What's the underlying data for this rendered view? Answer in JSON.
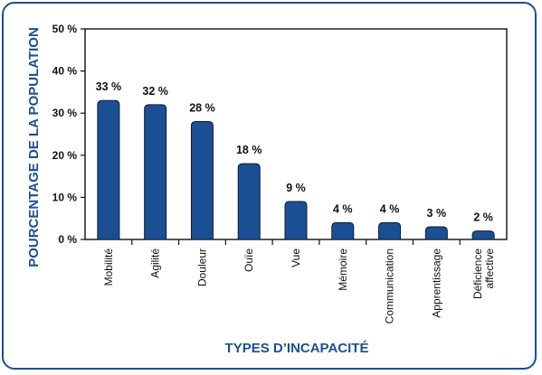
{
  "chart_data": {
    "type": "bar",
    "ylabel": "POURCENTAGE DE LA POPULATION",
    "xlabel": "TYPES D’INCAPACITÉ",
    "ylim": [
      0,
      50
    ],
    "yticks": [
      "0 %",
      "10 %",
      "20 %",
      "30 %",
      "40 %",
      "50 %"
    ],
    "categories": [
      [
        "Mobilité"
      ],
      [
        "Agilité"
      ],
      [
        "Douleur"
      ],
      [
        "Ouïe"
      ],
      [
        "Vue"
      ],
      [
        "Mémoire"
      ],
      [
        "Communication"
      ],
      [
        "Apprentissage"
      ],
      [
        "Déficience",
        "affective"
      ]
    ],
    "values": [
      33,
      32,
      28,
      18,
      9,
      4,
      4,
      3,
      2
    ],
    "value_labels": [
      "33 %",
      "32 %",
      "28 %",
      "18 %",
      "9 %",
      "4 %",
      "4 %",
      "3 %",
      "2 %"
    ],
    "grid": false,
    "colors": {
      "bar": "#1b4f93",
      "bar_stroke": "#0d1b33",
      "axis_title": "#1b4f93",
      "frame": "#1b4f93"
    }
  }
}
